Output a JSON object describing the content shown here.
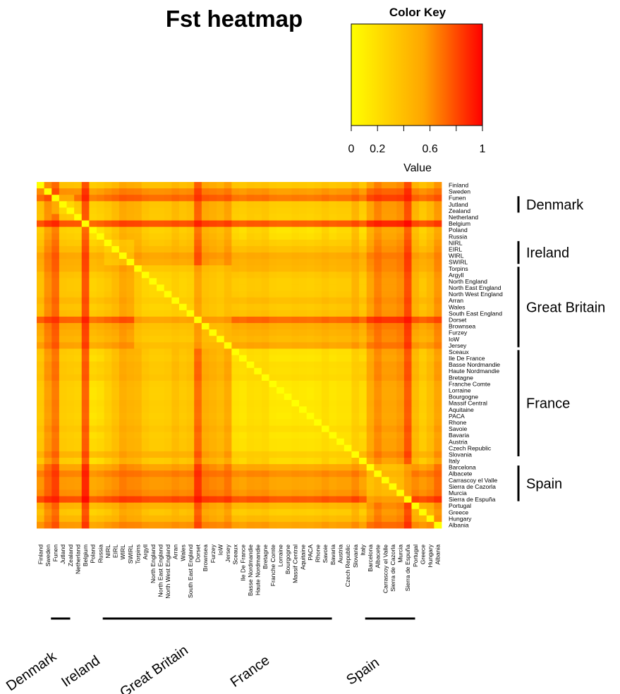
{
  "chart_data": {
    "type": "heatmap",
    "title": "Fst heatmap",
    "color_key": {
      "title": "Color Key",
      "xlabel": "Value",
      "range": [
        0,
        1
      ],
      "tick_labels": [
        "0",
        "0.2",
        "0.6",
        "1"
      ],
      "colors": [
        "#ffff00",
        "#ffa500",
        "#ff0000"
      ]
    },
    "populations": [
      "Finland",
      "Sweden",
      "Funen",
      "Jutland",
      "Zealand",
      "Netherland",
      "Belgium",
      "Poland",
      "Russia",
      "NIRL",
      "EIRL",
      "WIRL",
      "SWIRL",
      "Torpins",
      "Argyll",
      "North England",
      "North East England",
      "North West England",
      "Arran",
      "Wales",
      "South East England",
      "Dorset",
      "Brownsea",
      "Furzey",
      "IoW",
      "Jersey",
      "Sceaux",
      "Ile De France",
      "Basse Nordmandie",
      "Haute Nordmandie",
      "Bretagne",
      "Franche Comte",
      "Lorraine",
      "Bourgogne",
      "Massif Central",
      "Aquitaine",
      "PACA",
      "Rhone",
      "Savoie",
      "Bavaria",
      "Austria",
      "Czech Republic",
      "Slovania",
      "Italy",
      "Barcelona",
      "Albacete",
      "Carrascoy el Valle",
      "Sierra de Cazorla",
      "Murcia",
      "Sierra de Espuña",
      "Portugal",
      "Greece",
      "Hungary",
      "Albania"
    ],
    "row_groups": [
      {
        "label": "Denmark"
      },
      {
        "label": "Ireland"
      },
      {
        "label": "Great Britain"
      },
      {
        "label": "France"
      },
      {
        "label": "Spain"
      }
    ],
    "column_groups": [
      {
        "label": "Denmark"
      },
      {
        "label": "Ireland"
      },
      {
        "label": "Great Britain"
      },
      {
        "label": "France"
      },
      {
        "label": "Spain"
      }
    ],
    "row_effect": {
      "Finland": 0.35,
      "Sweden": 0.65,
      "Funen": 0.8,
      "Jutland": 0.32,
      "Zealand": 0.3,
      "Netherland": 0.28,
      "Belgium": 0.9,
      "Poland": 0.1,
      "Russia": 0.18,
      "NIRL": 0.3,
      "EIRL": 0.4,
      "WIRL": 0.55,
      "SWIRL": 0.5,
      "Torpins": 0.48,
      "Argyll": 0.35,
      "North England": 0.3,
      "North East England": 0.3,
      "North West England": 0.32,
      "Arran": 0.42,
      "Wales": 0.34,
      "South East England": 0.38,
      "Dorset": 0.85,
      "Brownsea": 0.55,
      "Furzey": 0.5,
      "IoW": 0.45,
      "Jersey": 0.58,
      "Sceaux": 0.25,
      "Ile De France": 0.2,
      "Basse Nordmandie": 0.3,
      "Haute Nordmandie": 0.28,
      "Bretagne": 0.32,
      "Franche Comte": 0.18,
      "Lorraine": 0.15,
      "Bourgogne": 0.15,
      "Massif Central": 0.2,
      "Aquitaine": 0.18,
      "PACA": 0.15,
      "Rhone": 0.2,
      "Savoie": 0.3,
      "Bavaria": 0.2,
      "Austria": 0.25,
      "Czech Republic": 0.25,
      "Slovania": 0.45,
      "Italy": 0.2,
      "Barcelona": 0.45,
      "Albacete": 0.6,
      "Carrascoy el Valle": 0.5,
      "Sierra de Cazorla": 0.5,
      "Murcia": 0.55,
      "Sierra de Espuña": 0.82,
      "Portugal": 0.45,
      "Greece": 0.3,
      "Hungary": 0.42,
      "Albania": 0.62
    },
    "notes": "Symmetric pairwise Fst matrix; diagonal is 0 (yellow). Cell values are estimated from colors."
  }
}
